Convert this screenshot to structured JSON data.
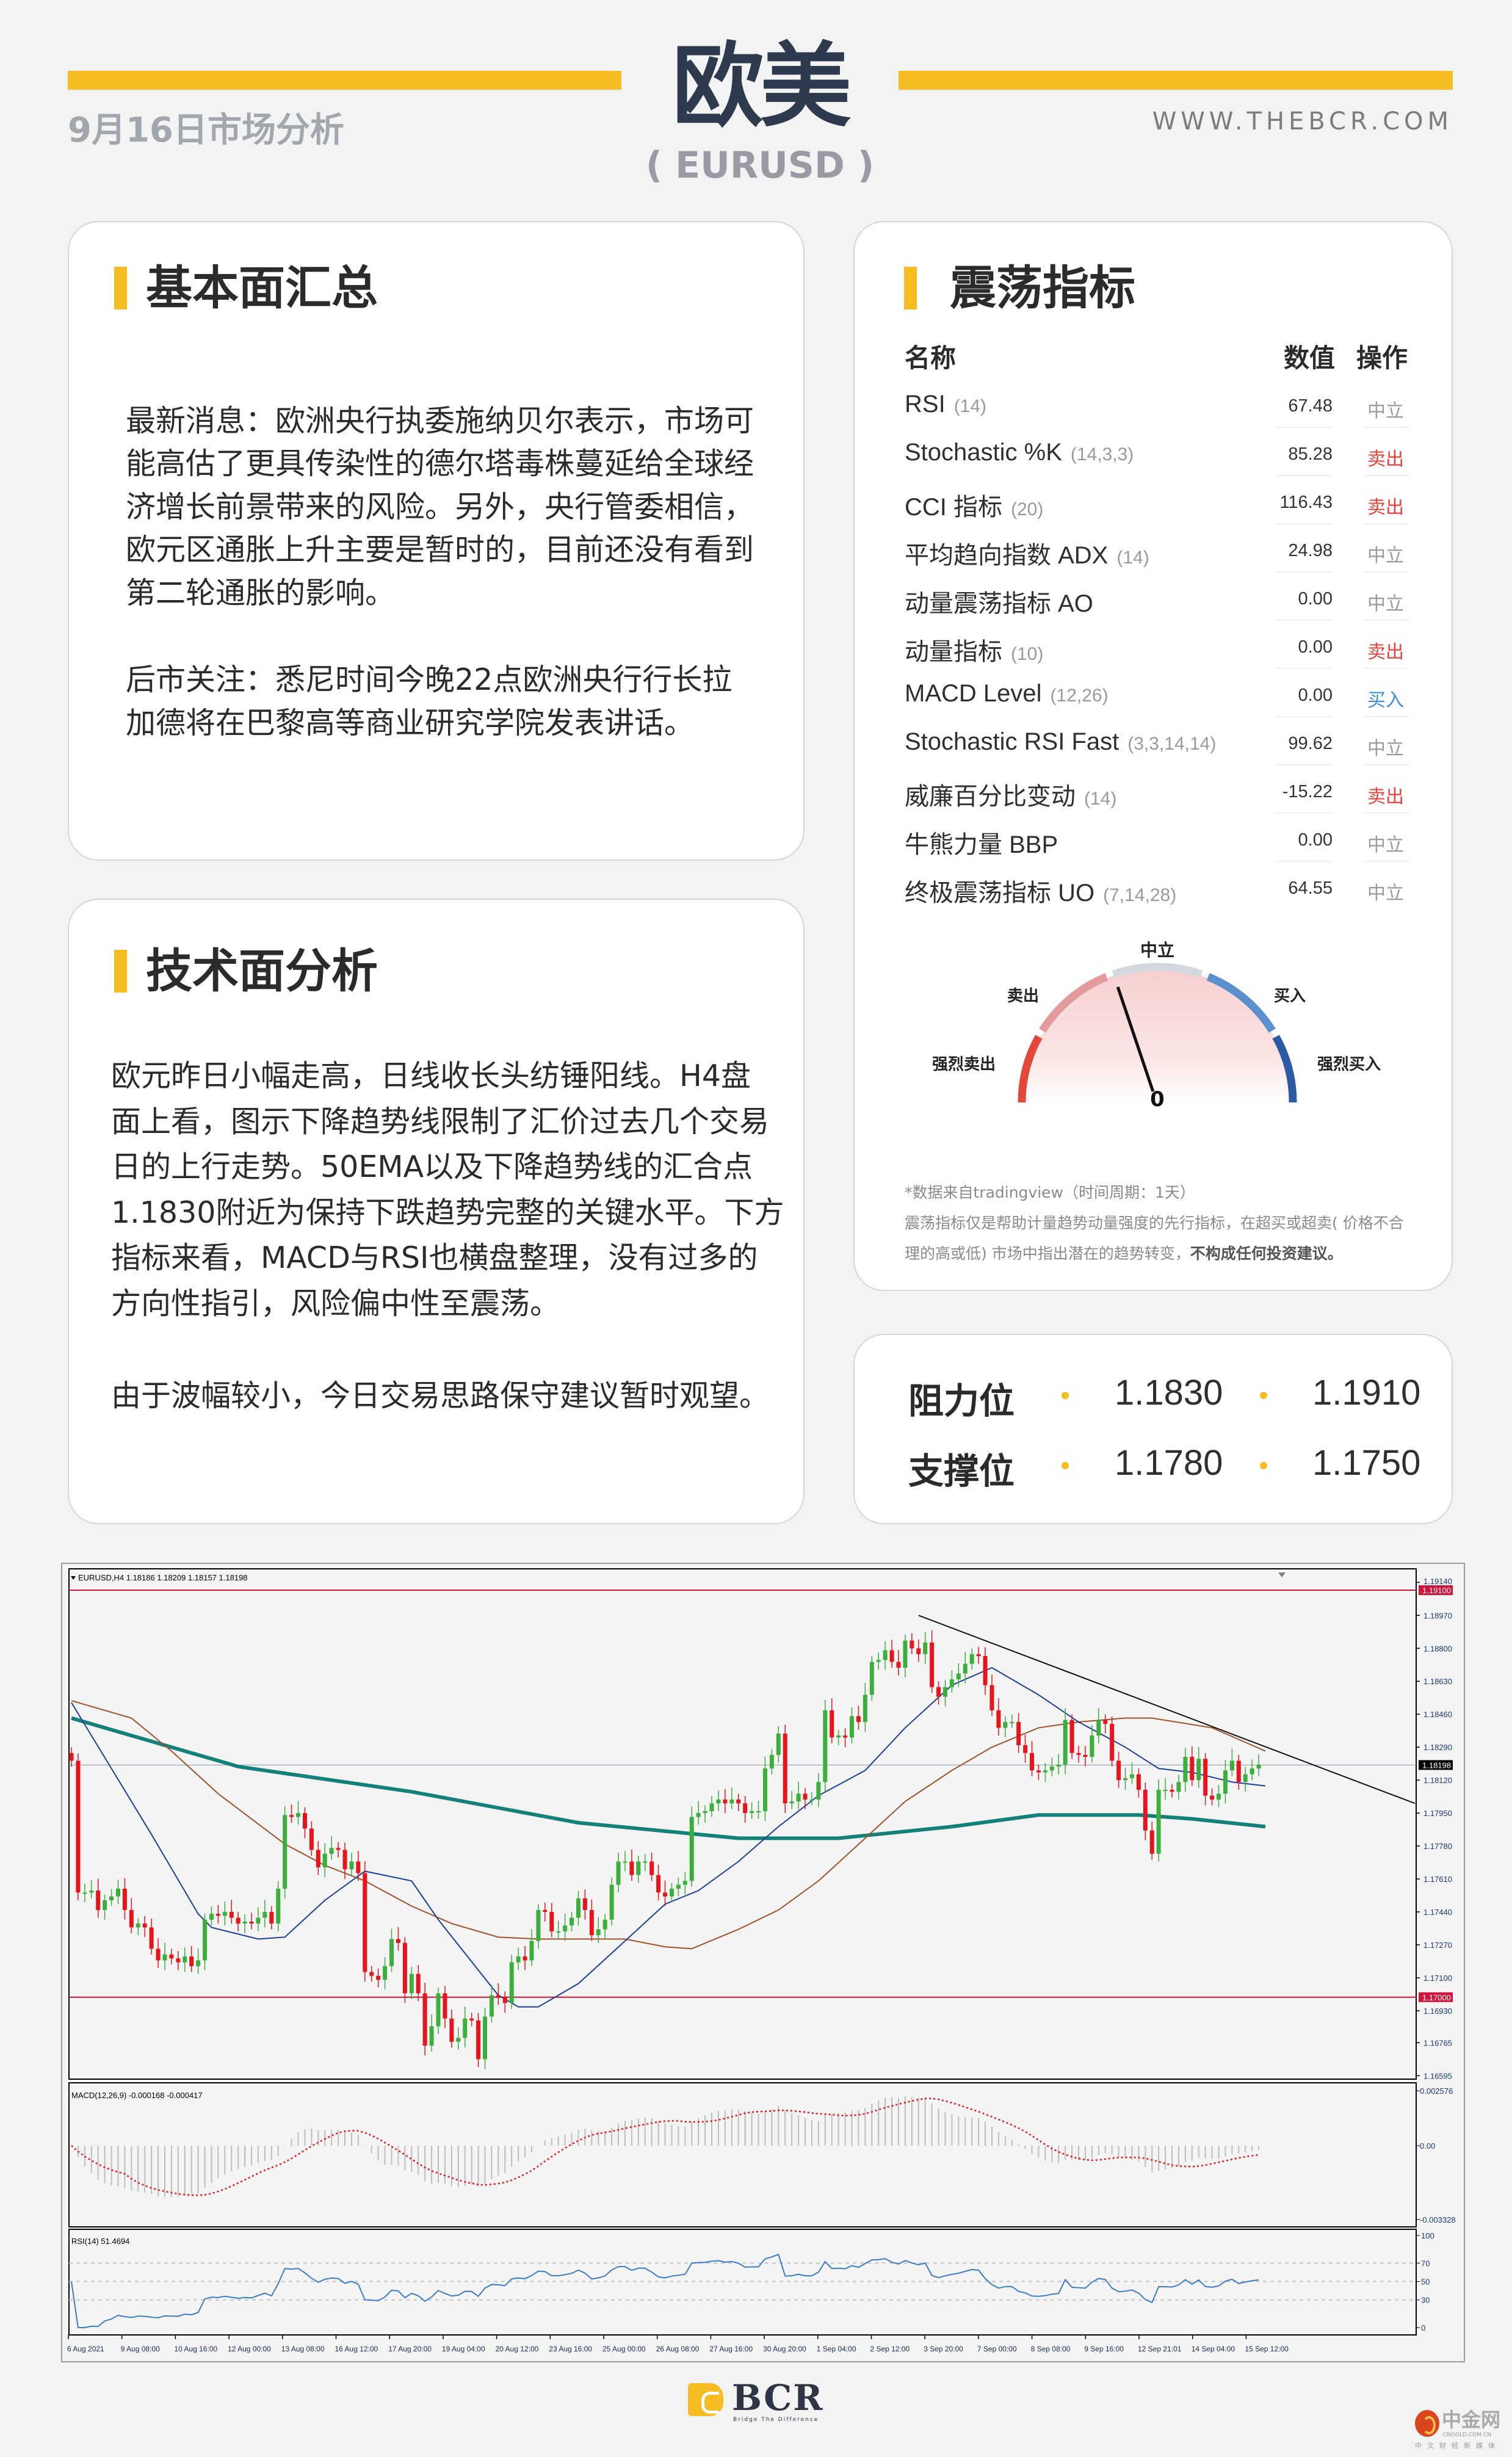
{
  "header": {
    "date_title": "9月16日市场分析",
    "main_title": "欧美",
    "subtitle": "( EURUSD )",
    "website": "WWW.THEBCR.COM"
  },
  "fundamentals": {
    "title": "基本面汇总",
    "lines": [
      "最新消息：欧洲央行执委施纳贝尔表示，市场可",
      "能高估了更具传染性的德尔塔毒株蔓延给全球经",
      "济增长前景带来的风险。另外，央行管委相信，",
      "欧元区通胀上升主要是暂时的，目前还没有看到",
      "第二轮通胀的影响。",
      "后市关注：悉尼时间今晚22点欧洲央行行长拉",
      "加德将在巴黎高等商业研究学院发表讲话。"
    ]
  },
  "technical": {
    "title": "技术面分析",
    "lines": [
      "欧元昨日小幅走高，日线收长头纺锤阳线。H4盘",
      "面上看，图示下降趋势线限制了汇价过去几个交易",
      "日的上行走势。50EMA以及下降趋势线的汇合点",
      "1.1830附近为保持下跌趋势完整的关键水平。下方",
      "指标来看，MACD与RSI也横盘整理，没有过多的",
      "方向性指引，风险偏中性至震荡。",
      "由于波幅较小，今日交易思路保守建议暂时观望。"
    ]
  },
  "oscillators": {
    "title": "震荡指标",
    "col_name": "名称",
    "col_value": "数值",
    "col_action": "操作",
    "rows": [
      {
        "name": "RSI",
        "params": "(14)",
        "value": "67.48",
        "action": "中立",
        "type": "neutral"
      },
      {
        "name": "Stochastic %K",
        "params": "(14,3,3)",
        "value": "85.28",
        "action": "卖出",
        "type": "sell"
      },
      {
        "name": "CCI 指标",
        "params": "(20)",
        "value": "116.43",
        "action": "卖出",
        "type": "sell"
      },
      {
        "name": "平均趋向指数 ADX",
        "params": "(14)",
        "value": "24.98",
        "action": "中立",
        "type": "neutral"
      },
      {
        "name": "动量震荡指标 AO",
        "params": "",
        "value": "0.00",
        "action": "中立",
        "type": "neutral"
      },
      {
        "name": "动量指标",
        "params": "(10)",
        "value": "0.00",
        "action": "卖出",
        "type": "sell"
      },
      {
        "name": "MACD Level",
        "params": "(12,26)",
        "value": "0.00",
        "action": "买入",
        "type": "buy"
      },
      {
        "name": "Stochastic RSI Fast",
        "params": "(3,3,14,14)",
        "value": "99.62",
        "action": "中立",
        "type": "neutral"
      },
      {
        "name": "威廉百分比变动",
        "params": "(14)",
        "value": "-15.22",
        "action": "卖出",
        "type": "sell"
      },
      {
        "name": "牛熊力量 BBP",
        "params": "",
        "value": "0.00",
        "action": "中立",
        "type": "neutral"
      },
      {
        "name": "终极震荡指标 UO",
        "params": "(7,14,28)",
        "value": "64.55",
        "action": "中立",
        "type": "neutral"
      }
    ],
    "gauge": {
      "neutral": "中立",
      "sell": "卖出",
      "buy": "买入",
      "strong_sell": "强烈卖出",
      "strong_buy": "强烈买入",
      "value": "0",
      "needle_position": -0.21
    },
    "note_source": "*数据来自tradingview（时间周期：1天）",
    "note_desc_1": "震荡指标仅是帮助计量趋势动量强度的先行指标，在超买或超卖( 价格不合",
    "note_desc_2": "理的高或低) 市场中指出潜在的趋势转变，",
    "note_desc_bold": "不构成任何投资建议。"
  },
  "levels": {
    "resistance_label": "阻力位",
    "resistance": [
      "1.1830",
      "1.1910"
    ],
    "support_label": "支撑位",
    "support": [
      "1.1780",
      "1.1750"
    ]
  },
  "chart_data": {
    "type": "candlestick",
    "symbol_label": "EURUSD,H4  1.18186 1.18209 1.18157 1.18198",
    "closes": [
      1.1822,
      1.1754,
      1.1754,
      1.1755,
      1.1745,
      1.175,
      1.1752,
      1.1756,
      1.1745,
      1.1736,
      1.1738,
      1.1736,
      1.1725,
      1.1719,
      1.1722,
      1.172,
      1.1718,
      1.1721,
      1.1716,
      1.1719,
      1.174,
      1.1743,
      1.1742,
      1.1744,
      1.1741,
      1.1738,
      1.1739,
      1.1738,
      1.1741,
      1.1744,
      1.1738,
      1.1756,
      1.1794,
      1.1793,
      1.1795,
      1.1787,
      1.1776,
      1.1767,
      1.1774,
      1.1777,
      1.1776,
      1.1766,
      1.177,
      1.1764,
      1.1713,
      1.1711,
      1.1709,
      1.1716,
      1.173,
      1.1728,
      1.1702,
      1.1712,
      1.1702,
      1.1675,
      1.1685,
      1.1702,
      1.1689,
      1.1677,
      1.1679,
      1.1689,
      1.1688,
      1.1668,
      1.169,
      1.1701,
      1.17,
      1.1697,
      1.1718,
      1.1721,
      1.1719,
      1.1729,
      1.1745,
      1.1744,
      1.1734,
      1.1734,
      1.1737,
      1.1741,
      1.1751,
      1.1745,
      1.1732,
      1.1735,
      1.174,
      1.1758,
      1.177,
      1.177,
      1.1763,
      1.177,
      1.177,
      1.1763,
      1.1754,
      1.1752,
      1.1756,
      1.1758,
      1.176,
      1.1793,
      1.1795,
      1.1796,
      1.18,
      1.1802,
      1.18,
      1.1802,
      1.18,
      1.1795,
      1.1796,
      1.1796,
      1.1818,
      1.1825,
      1.1836,
      1.18,
      1.1801,
      1.1805,
      1.1802,
      1.1802,
      1.1811,
      1.1848,
      1.1834,
      1.1835,
      1.1834,
      1.1845,
      1.1842,
      1.1856,
      1.1873,
      1.1874,
      1.1879,
      1.1873,
      1.187,
      1.1884,
      1.188,
      1.1877,
      1.1883,
      1.186,
      1.1855,
      1.186,
      1.1864,
      1.1867,
      1.1872,
      1.1877,
      1.1876,
      1.1861,
      1.1848,
      1.1839,
      1.1842,
      1.1842,
      1.183,
      1.1826,
      1.1817,
      1.1816,
      1.1817,
      1.1819,
      1.182,
      1.1843,
      1.1826,
      1.1825,
      1.1824,
      1.1835,
      1.1843,
      1.1841,
      1.1822,
      1.1812,
      1.1813,
      1.1815,
      1.1807,
      1.1786,
      1.1774,
      1.1807,
      1.1807,
      1.1806,
      1.1811,
      1.1824,
      1.1812,
      1.1823,
      1.1804,
      1.1802,
      1.1805,
      1.1817,
      1.1822,
      1.1811,
      1.1815,
      1.1818,
      1.182
    ],
    "ma_fast": [
      [
        0,
        1.1852
      ],
      [
        6,
        1.1818
      ],
      [
        12,
        1.1784
      ],
      [
        19,
        1.1743
      ],
      [
        21,
        1.1736
      ],
      [
        28,
        1.173
      ],
      [
        32,
        1.1731
      ],
      [
        38,
        1.175
      ],
      [
        44,
        1.1765
      ],
      [
        51,
        1.176
      ],
      [
        55,
        1.174
      ],
      [
        64,
        1.1701
      ],
      [
        67,
        1.1695
      ],
      [
        70,
        1.1695
      ],
      [
        76,
        1.1707
      ],
      [
        83,
        1.1729
      ],
      [
        89,
        1.1748
      ],
      [
        94,
        1.1755
      ],
      [
        100,
        1.177
      ],
      [
        106,
        1.1788
      ],
      [
        112,
        1.1804
      ],
      [
        119,
        1.1817
      ],
      [
        125,
        1.1839
      ],
      [
        132,
        1.1861
      ],
      [
        138,
        1.187
      ],
      [
        145,
        1.1856
      ],
      [
        151,
        1.1842
      ],
      [
        158,
        1.1829
      ],
      [
        163,
        1.1818
      ],
      [
        168,
        1.1816
      ],
      [
        174,
        1.1811
      ],
      [
        179,
        1.1809
      ]
    ],
    "ma_mid": [
      [
        0,
        1.1853
      ],
      [
        9,
        1.1844
      ],
      [
        15,
        1.1827
      ],
      [
        22,
        1.1805
      ],
      [
        32,
        1.1779
      ],
      [
        38,
        1.1768
      ],
      [
        44,
        1.176
      ],
      [
        51,
        1.1747
      ],
      [
        57,
        1.1738
      ],
      [
        64,
        1.1731
      ],
      [
        70,
        1.173
      ],
      [
        83,
        1.173
      ],
      [
        89,
        1.1726
      ],
      [
        93,
        1.1725
      ],
      [
        100,
        1.1735
      ],
      [
        106,
        1.1745
      ],
      [
        112,
        1.176
      ],
      [
        119,
        1.1782
      ],
      [
        125,
        1.1801
      ],
      [
        132,
        1.1817
      ],
      [
        138,
        1.1829
      ],
      [
        145,
        1.1839
      ],
      [
        151,
        1.1842
      ],
      [
        158,
        1.1844
      ],
      [
        162,
        1.1844
      ],
      [
        171,
        1.1839
      ],
      [
        179,
        1.1827
      ]
    ],
    "ma_slow": [
      [
        0,
        1.1844
      ],
      [
        25,
        1.1819
      ],
      [
        51,
        1.1806
      ],
      [
        76,
        1.179
      ],
      [
        100,
        1.1782
      ],
      [
        115,
        1.1782
      ],
      [
        132,
        1.1788
      ],
      [
        145,
        1.1794
      ],
      [
        160,
        1.1794
      ],
      [
        168,
        1.1792
      ],
      [
        179,
        1.1788
      ]
    ],
    "trendline": [
      [
        127,
        1.1897
      ],
      [
        202,
        1.18
      ]
    ],
    "hlines": [
      {
        "price": 1.191,
        "label": "1.19100"
      },
      {
        "price": 1.17,
        "label": "1.17000"
      }
    ],
    "current_price": {
      "price": 1.18198,
      "label": "1.18198"
    },
    "ylim": [
      1.16595,
      1.1914
    ],
    "y_ticks": [
      "1.19140",
      "1.18970",
      "1.18800",
      "1.18630",
      "1.18460",
      "1.18290",
      "1.18120",
      "1.17950",
      "1.17780",
      "1.17610",
      "1.17440",
      "1.17270",
      "1.17100",
      "1.16930",
      "1.16765",
      "1.16595"
    ],
    "x_ticks": [
      "6 Aug 2021",
      "9 Aug 08:00",
      "10 Aug 16:00",
      "12 Aug 00:00",
      "13 Aug 08:00",
      "16 Aug 12:00",
      "17 Aug 20:00",
      "19 Aug 04:00",
      "20 Aug 12:00",
      "23 Aug 16:00",
      "25 Aug 00:00",
      "26 Aug 08:00",
      "27 Aug 16:00",
      "30 Aug 20:00",
      "1 Sep 04:00",
      "2 Sep 12:00",
      "3 Sep 20:00",
      "7 Sep 00:00",
      "8 Sep 08:00",
      "9 Sep 16:00",
      "12 Sep 21:01",
      "14 Sep 04:00",
      "15 Sep 12:00"
    ],
    "macd": {
      "label": "MACD(12,26,9) -0.000168 -0.000417",
      "y_ticks": [
        "0.002576",
        "0.00",
        "-0.003328"
      ],
      "ylim": [
        -0.003328,
        0.002576
      ]
    },
    "rsi": {
      "label": "RSI(14) 51.4694",
      "y_ticks": [
        "100",
        "70",
        "50",
        "30",
        "0"
      ],
      "levels": [
        70,
        50,
        30
      ]
    },
    "colors": {
      "up": "#3cae3c",
      "down": "#e8141c",
      "ma_fast": "#1a3f9c",
      "ma_mid": "#a0522d",
      "ma_slow": "#14807a",
      "hline": "#d0143c",
      "rsi": "#3a7dc9",
      "macd_hist": "#bdbdbd",
      "macd_signal": "#e8141c"
    }
  },
  "footer": {
    "brand": "BCR",
    "tagline": "Bridge The Difference",
    "partner": "中金网",
    "partner_domain": "CNGOLD.COM.CN",
    "partner_tagline": "中文财经新媒体"
  },
  "colors": {
    "accent": "#f5bd22",
    "sell": "#e8403a",
    "buy": "#3a8fd8",
    "neutral": "#9a9a9a",
    "title": "#2e3b4e"
  }
}
